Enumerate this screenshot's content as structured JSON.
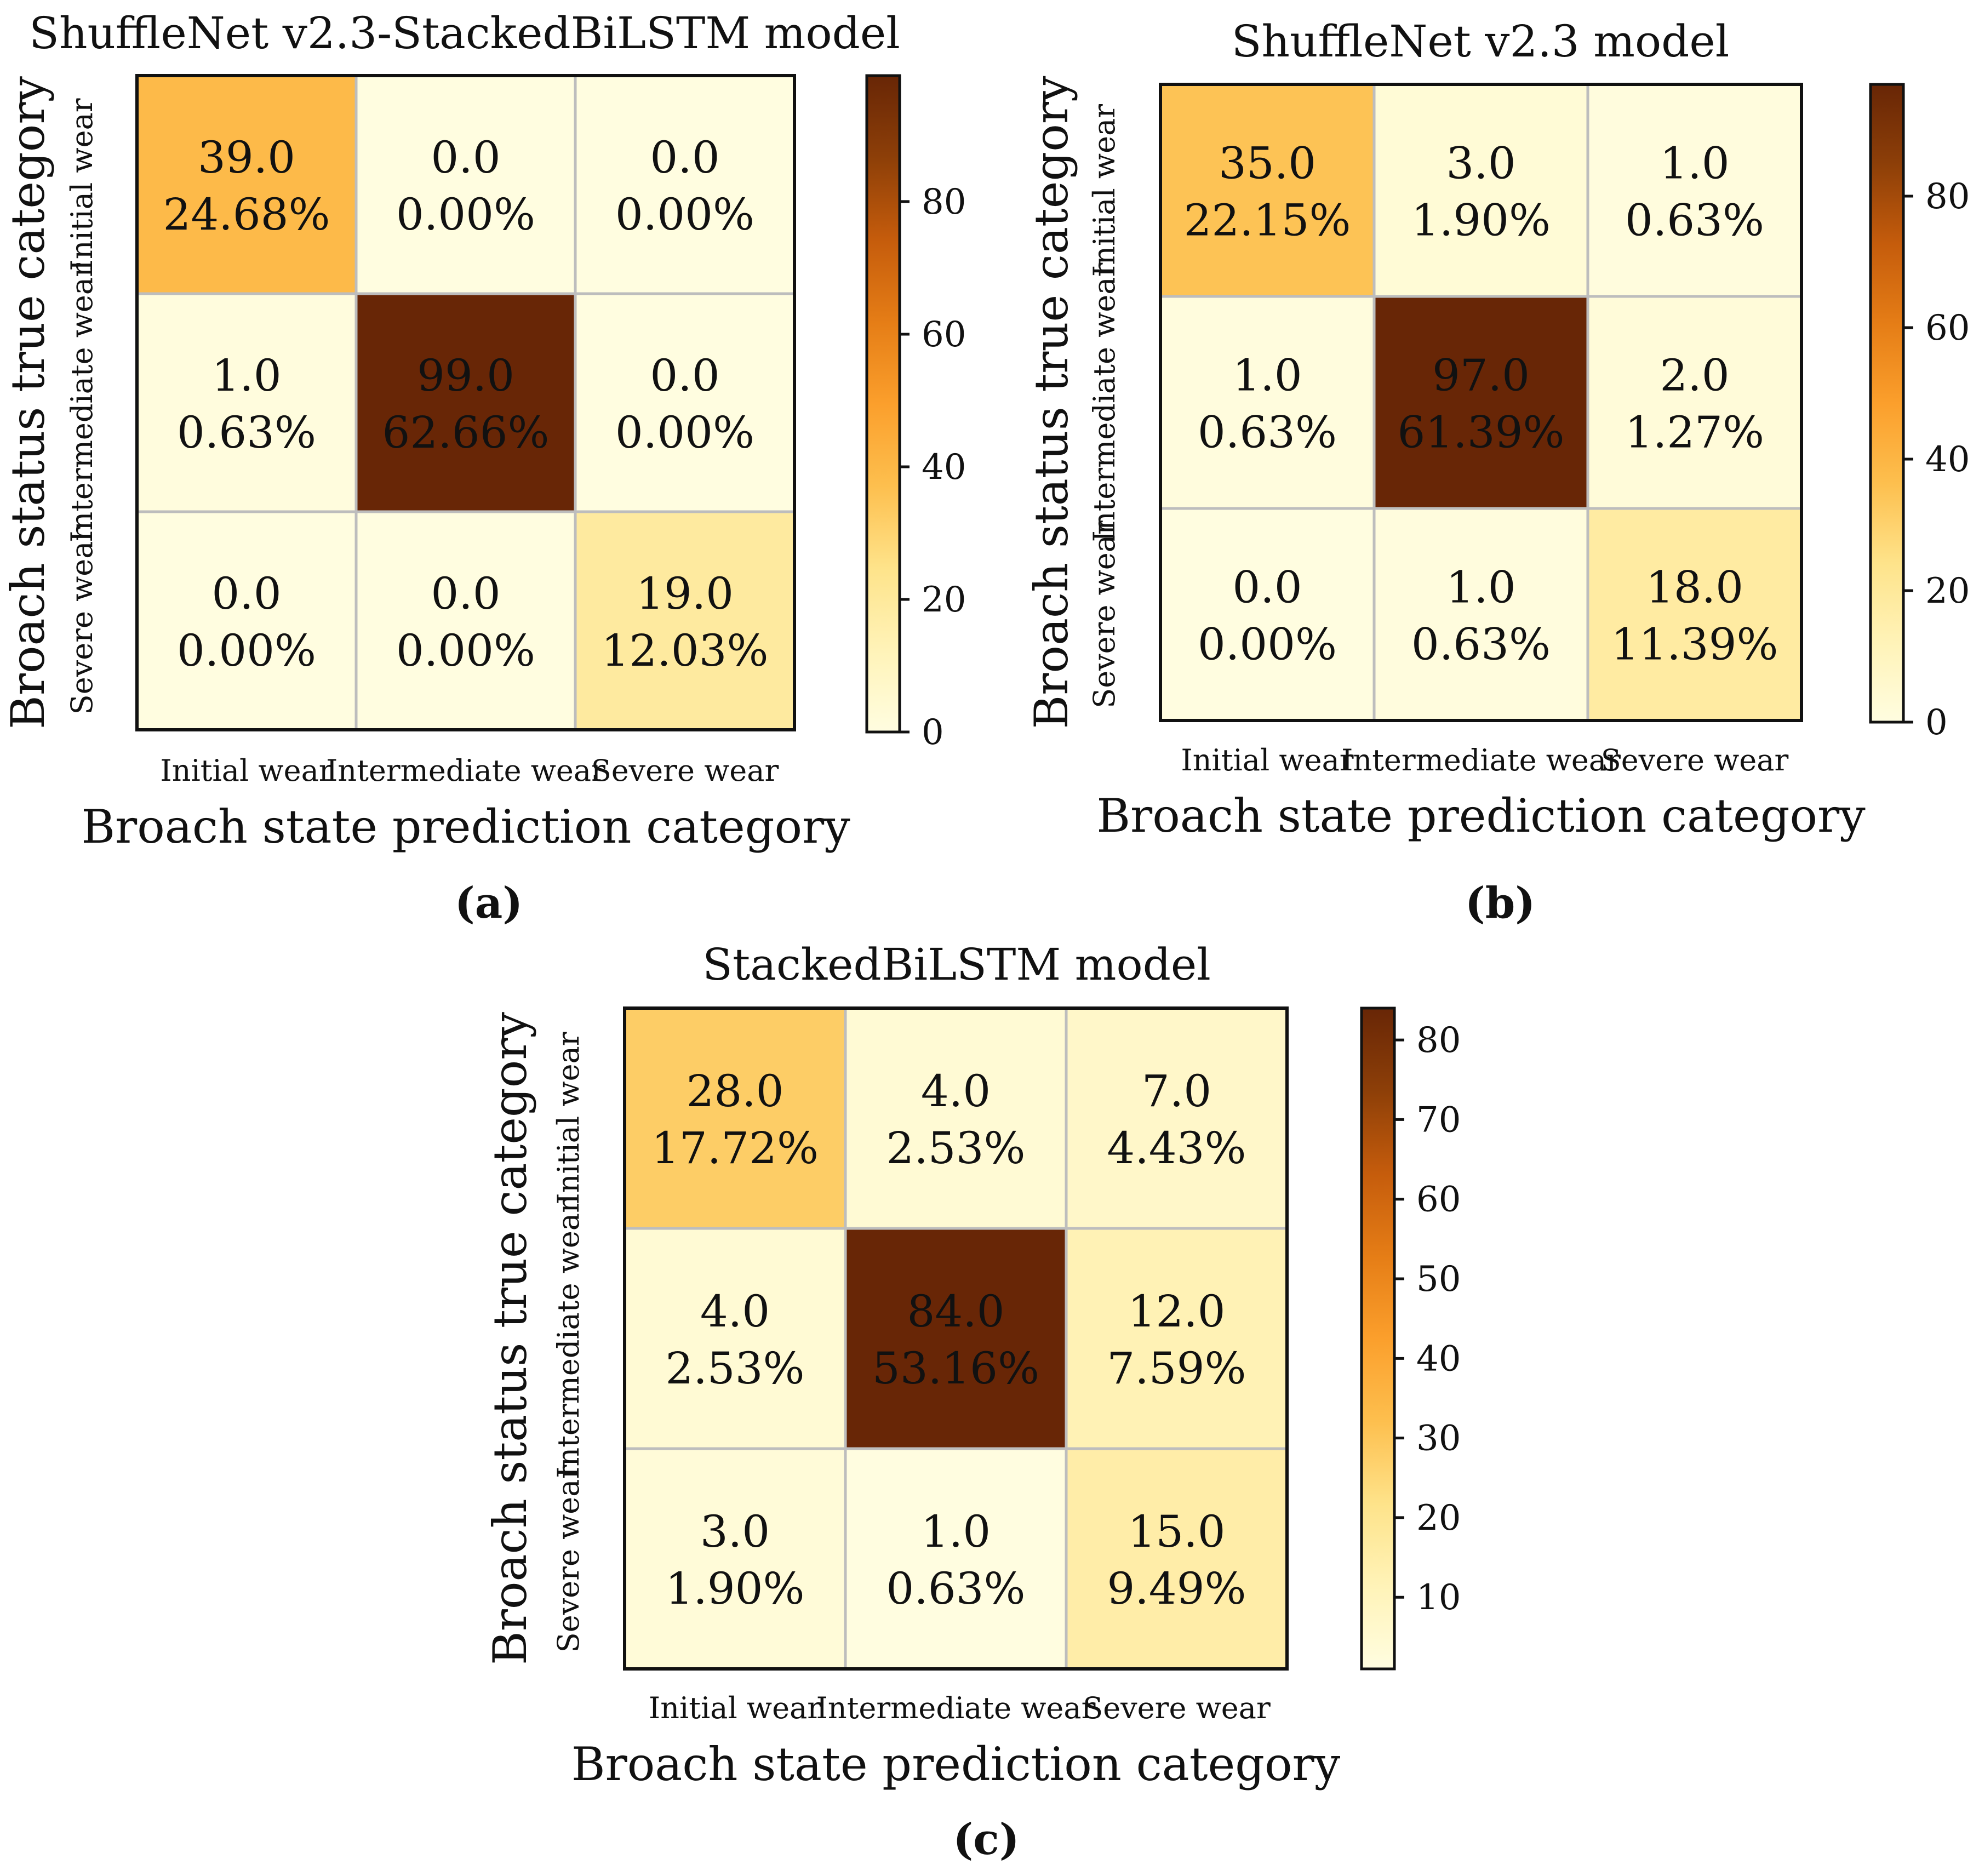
{
  "figure": {
    "labels": [
      "(a)",
      "(b)",
      "(c)"
    ],
    "colormap_stops": [
      "#fffde0",
      "#fff3b8",
      "#fee38a",
      "#fdbf4e",
      "#fb9f2c",
      "#e57d16",
      "#c55c0c",
      "#8d3f08",
      "#682606"
    ]
  },
  "chart_data": [
    {
      "type": "heatmap",
      "title": "ShuffleNet v2.3-StackedBiLSTM model",
      "xlabel": "Broach state prediction category",
      "ylabel": "Broach status true category",
      "categories": [
        "Initial wear",
        "Intermediate wear",
        "Severe wear"
      ],
      "values": [
        [
          39.0,
          0.0,
          0.0
        ],
        [
          1.0,
          99.0,
          0.0
        ],
        [
          0.0,
          0.0,
          19.0
        ]
      ],
      "counts_text": [
        [
          "39.0",
          "0.0",
          "0.0"
        ],
        [
          "1.0",
          "99.0",
          "0.0"
        ],
        [
          "0.0",
          "0.0",
          "19.0"
        ]
      ],
      "percents": [
        [
          "24.68%",
          "0.00%",
          "0.00%"
        ],
        [
          "0.63%",
          "62.66%",
          "0.00%"
        ],
        [
          "0.00%",
          "0.00%",
          "12.03%"
        ]
      ],
      "colorbar": {
        "min": 0,
        "max": 99,
        "ticks": [
          0,
          20,
          40,
          60,
          80
        ]
      }
    },
    {
      "type": "heatmap",
      "title": "ShuffleNet v2.3 model",
      "xlabel": "Broach state prediction category",
      "ylabel": "Broach status true category",
      "categories": [
        "Initial wear",
        "Intermediate wear",
        "Severe wear"
      ],
      "values": [
        [
          35.0,
          3.0,
          1.0
        ],
        [
          1.0,
          97.0,
          2.0
        ],
        [
          0.0,
          1.0,
          18.0
        ]
      ],
      "counts_text": [
        [
          "35.0",
          "3.0",
          "1.0"
        ],
        [
          "1.0",
          "97.0",
          "2.0"
        ],
        [
          "0.0",
          "1.0",
          "18.0"
        ]
      ],
      "percents": [
        [
          "22.15%",
          "1.90%",
          "0.63%"
        ],
        [
          "0.63%",
          "61.39%",
          "1.27%"
        ],
        [
          "0.00%",
          "0.63%",
          "11.39%"
        ]
      ],
      "colorbar": {
        "min": 0,
        "max": 97,
        "ticks": [
          0,
          20,
          40,
          60,
          80
        ]
      }
    },
    {
      "type": "heatmap",
      "title": "StackedBiLSTM model",
      "xlabel": "Broach state prediction category",
      "ylabel": "Broach status true category",
      "categories": [
        "Initial wear",
        "Intermediate wear",
        "Severe wear"
      ],
      "values": [
        [
          28.0,
          4.0,
          7.0
        ],
        [
          4.0,
          84.0,
          12.0
        ],
        [
          3.0,
          1.0,
          15.0
        ]
      ],
      "counts_text": [
        [
          "28.0",
          "4.0",
          "7.0"
        ],
        [
          "4.0",
          "84.0",
          "12.0"
        ],
        [
          "3.0",
          "1.0",
          "15.0"
        ]
      ],
      "percents": [
        [
          "17.72%",
          "2.53%",
          "4.43%"
        ],
        [
          "2.53%",
          "53.16%",
          "7.59%"
        ],
        [
          "1.90%",
          "0.63%",
          "9.49%"
        ]
      ],
      "colorbar": {
        "min": 1,
        "max": 84,
        "ticks": [
          10,
          20,
          30,
          40,
          50,
          60,
          70,
          80
        ]
      }
    }
  ]
}
